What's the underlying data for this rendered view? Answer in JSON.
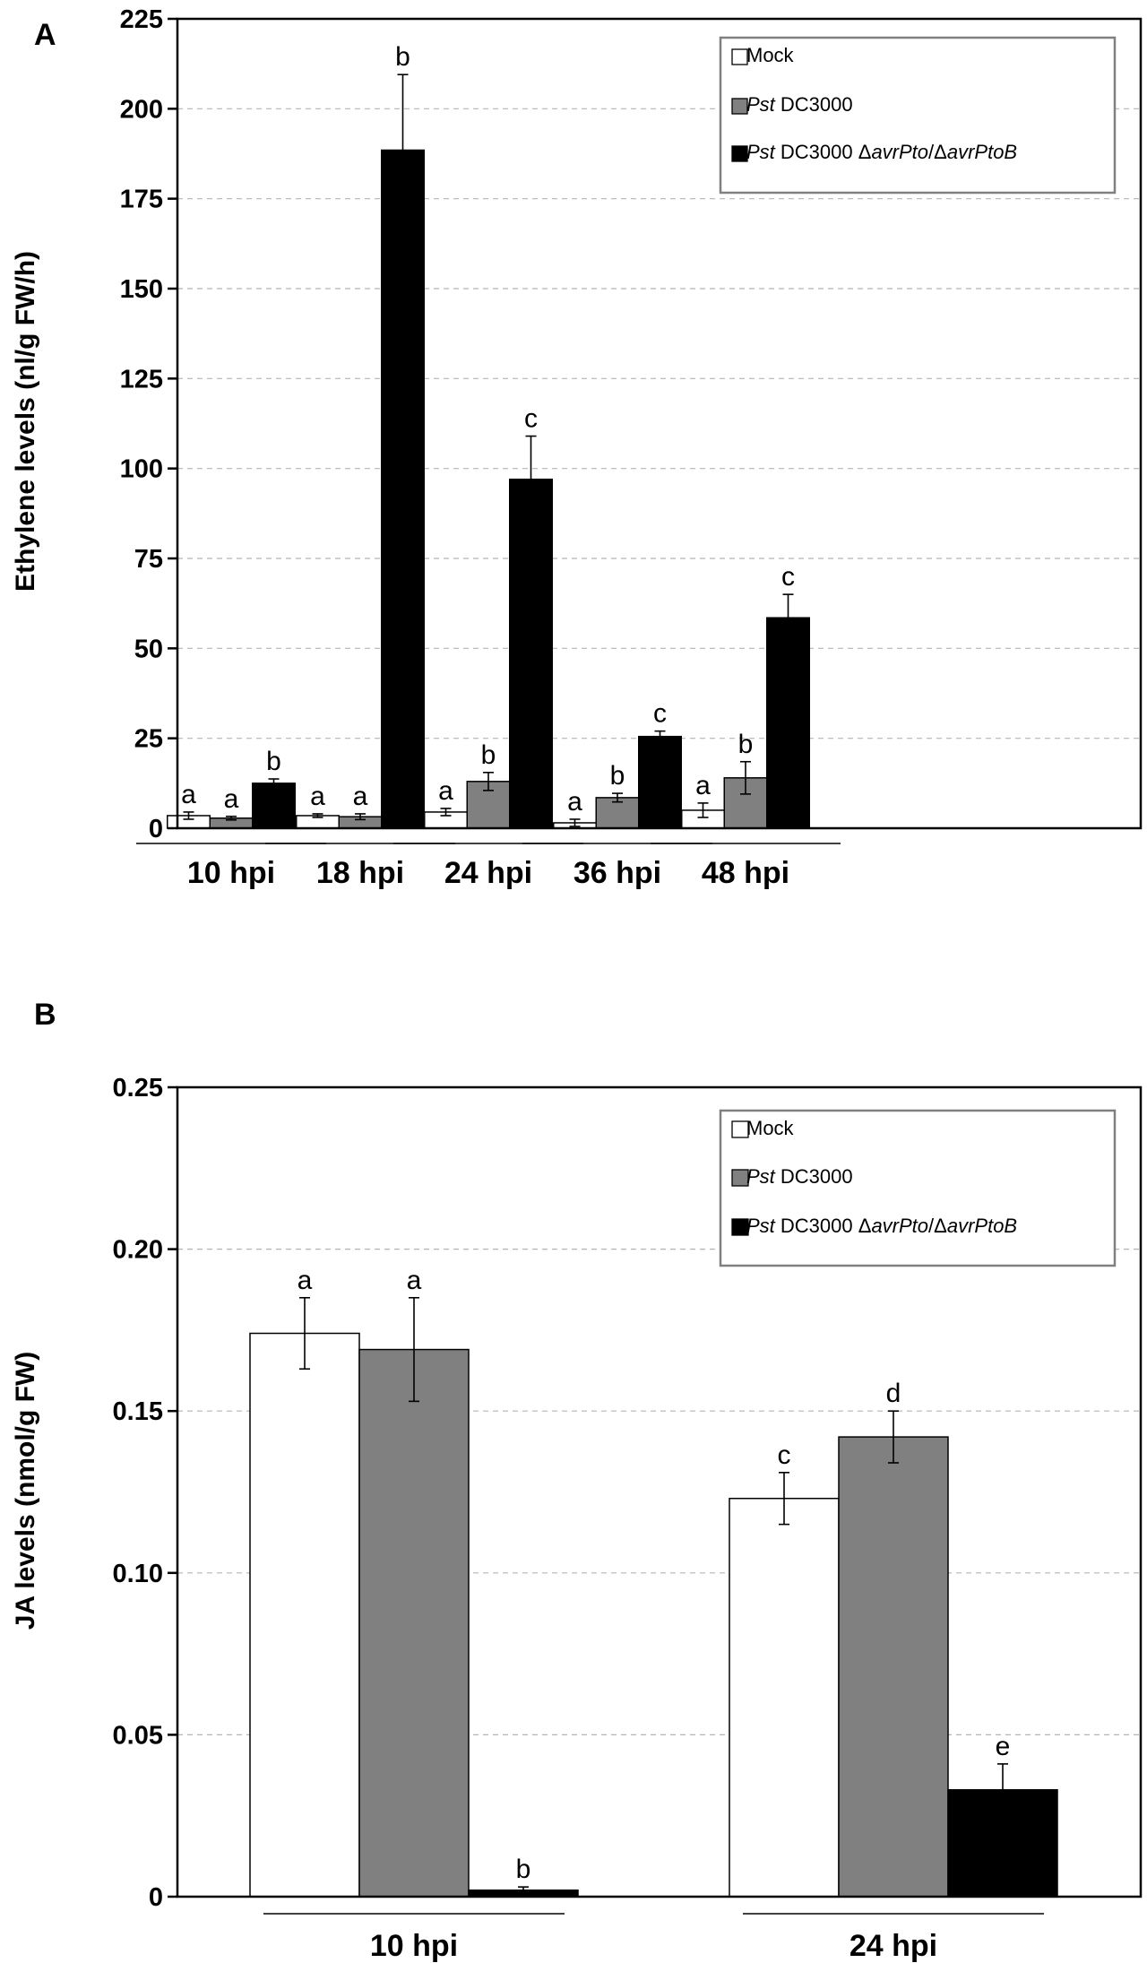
{
  "chart_data": [
    {
      "panel": "A",
      "type": "bar",
      "title": "",
      "ylabel": "Ethylene levels (nl/g FW/h)",
      "xlabel": "",
      "ylim": [
        0,
        225
      ],
      "yticks": [
        "0",
        "25",
        "50",
        "75",
        "100",
        "125",
        "150",
        "175",
        "200",
        "225"
      ],
      "grid": true,
      "legend_position": "top-right",
      "categories": [
        "10 hpi",
        "18 hpi",
        "24 hpi",
        "36 hpi",
        "48 hpi"
      ],
      "series": [
        {
          "name": "Mock",
          "color": "#ffffff",
          "values": [
            3.5,
            3.5,
            4.5,
            1.5,
            5
          ],
          "errors": [
            1,
            0.5,
            1,
            1,
            2
          ],
          "letters": [
            "a",
            "a",
            "a",
            "a",
            "a"
          ]
        },
        {
          "name": "Pst DC3000",
          "color": "#808080",
          "values": [
            2.8,
            3.2,
            13,
            8.5,
            14
          ],
          "errors": [
            0.5,
            0.8,
            2.5,
            1.2,
            4.5
          ],
          "letters": [
            "a",
            "a",
            "b",
            "b",
            "b"
          ]
        },
        {
          "name": "Pst DC3000 ΔavrPto/ΔavrPtoB",
          "color": "#000000",
          "values": [
            12.5,
            188.5,
            97,
            25.5,
            58.5
          ],
          "errors": [
            1.2,
            21,
            12,
            1.5,
            6.5
          ],
          "letters": [
            "b",
            "b",
            "c",
            "c",
            "c"
          ]
        }
      ]
    },
    {
      "panel": "B",
      "type": "bar",
      "title": "",
      "ylabel": "JA levels (nmol/g FW)",
      "xlabel": "",
      "ylim": [
        0,
        0.25
      ],
      "yticks": [
        "0",
        "0.05",
        "0.10",
        "0.15",
        "0.20",
        "0.25"
      ],
      "grid": true,
      "legend_position": "top-right",
      "categories": [
        "10 hpi",
        "24 hpi"
      ],
      "series": [
        {
          "name": "Mock",
          "color": "#ffffff",
          "values": [
            0.174,
            0.123
          ],
          "errors": [
            0.011,
            0.008
          ],
          "letters": [
            "a",
            "c"
          ]
        },
        {
          "name": "Pst DC3000",
          "color": "#808080",
          "values": [
            0.169,
            0.142
          ],
          "errors": [
            0.016,
            0.008
          ],
          "letters": [
            "a",
            "d"
          ]
        },
        {
          "name": "Pst DC3000 ΔavrPto/ΔavrPtoB",
          "color": "#000000",
          "values": [
            0.002,
            0.033
          ],
          "errors": [
            0.001,
            0.008
          ],
          "letters": [
            "b",
            "e"
          ]
        }
      ]
    }
  ],
  "legend_parts": [
    [
      {
        "text": "Mock",
        "italic": false
      }
    ],
    [
      {
        "text": "Pst",
        "italic": true
      },
      {
        "text": " DC3000",
        "italic": false
      }
    ],
    [
      {
        "text": "Pst",
        "italic": true
      },
      {
        "text": " DC3000 Δ",
        "italic": false
      },
      {
        "text": "avrPto",
        "italic": true
      },
      {
        "text": "/Δ",
        "italic": false
      },
      {
        "text": "avrPtoB",
        "italic": true
      }
    ]
  ]
}
